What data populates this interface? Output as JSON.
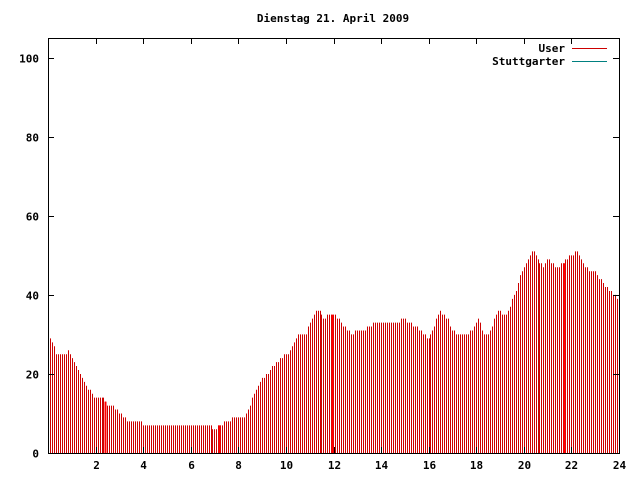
{
  "chart_data": {
    "type": "bar",
    "title": "Dienstag 21. April 2009",
    "xlabel": "",
    "ylabel": "",
    "xlim": [
      0,
      24
    ],
    "ylim": [
      0,
      105
    ],
    "x_ticks": [
      2,
      4,
      6,
      8,
      10,
      12,
      14,
      16,
      18,
      20,
      22,
      24
    ],
    "x_tick_labels": [
      "2",
      "4",
      "6",
      "8",
      "10",
      "12",
      "14",
      "16",
      "18",
      "20",
      "22",
      "24"
    ],
    "y_ticks": [
      0,
      20,
      40,
      60,
      80,
      100
    ],
    "y_tick_labels": [
      "0",
      "20",
      "40",
      "60",
      "80",
      "100"
    ],
    "grid": false,
    "legend_position": "top-right",
    "series": [
      {
        "name": "User",
        "color": "#cc0000",
        "anchors": [
          [
            0.0,
            29
          ],
          [
            0.17,
            28
          ],
          [
            0.33,
            25
          ],
          [
            0.6,
            25
          ],
          [
            0.75,
            25
          ],
          [
            0.85,
            26
          ],
          [
            1.0,
            24
          ],
          [
            1.2,
            22
          ],
          [
            1.4,
            19
          ],
          [
            1.6,
            17
          ],
          [
            1.8,
            15
          ],
          [
            2.0,
            14
          ],
          [
            2.3,
            14
          ],
          [
            2.5,
            12
          ],
          [
            2.7,
            12
          ],
          [
            2.85,
            11
          ],
          [
            3.0,
            10
          ],
          [
            3.2,
            9
          ],
          [
            3.4,
            8
          ],
          [
            3.8,
            8
          ],
          [
            4.1,
            7
          ],
          [
            4.5,
            7
          ],
          [
            5.0,
            7
          ],
          [
            6.0,
            7
          ],
          [
            6.8,
            7
          ],
          [
            7.0,
            6
          ],
          [
            7.2,
            7
          ],
          [
            7.6,
            8
          ],
          [
            7.8,
            9
          ],
          [
            8.2,
            9
          ],
          [
            8.4,
            11
          ],
          [
            8.6,
            14
          ],
          [
            8.8,
            17
          ],
          [
            9.0,
            19
          ],
          [
            9.2,
            20
          ],
          [
            9.4,
            22
          ],
          [
            9.6,
            23
          ],
          [
            9.8,
            24
          ],
          [
            10.0,
            25
          ],
          [
            10.2,
            26
          ],
          [
            10.4,
            29
          ],
          [
            10.5,
            30
          ],
          [
            10.8,
            30
          ],
          [
            11.0,
            33
          ],
          [
            11.2,
            36
          ],
          [
            11.4,
            36
          ],
          [
            11.6,
            34
          ],
          [
            11.8,
            35
          ],
          [
            12.0,
            35
          ],
          [
            12.2,
            34
          ],
          [
            12.4,
            32
          ],
          [
            12.6,
            31
          ],
          [
            12.8,
            30
          ],
          [
            13.0,
            31
          ],
          [
            13.3,
            31
          ],
          [
            13.5,
            32
          ],
          [
            13.8,
            33
          ],
          [
            14.0,
            33
          ],
          [
            14.3,
            33
          ],
          [
            14.6,
            33
          ],
          [
            14.9,
            34
          ],
          [
            15.1,
            33
          ],
          [
            15.4,
            32
          ],
          [
            15.6,
            31
          ],
          [
            15.8,
            30
          ],
          [
            16.0,
            29
          ],
          [
            16.2,
            31
          ],
          [
            16.3,
            34
          ],
          [
            16.45,
            36
          ],
          [
            16.6,
            35
          ],
          [
            16.8,
            34
          ],
          [
            17.0,
            31
          ],
          [
            17.2,
            30
          ],
          [
            17.6,
            30
          ],
          [
            17.8,
            31
          ],
          [
            18.0,
            33
          ],
          [
            18.1,
            34
          ],
          [
            18.3,
            30
          ],
          [
            18.5,
            30
          ],
          [
            18.7,
            33
          ],
          [
            18.9,
            36
          ],
          [
            19.1,
            35
          ],
          [
            19.3,
            35
          ],
          [
            19.5,
            39
          ],
          [
            19.7,
            42
          ],
          [
            19.9,
            46
          ],
          [
            20.0,
            47
          ],
          [
            20.2,
            50
          ],
          [
            20.4,
            51
          ],
          [
            20.6,
            49
          ],
          [
            20.8,
            47
          ],
          [
            21.0,
            49
          ],
          [
            21.2,
            48
          ],
          [
            21.4,
            47
          ],
          [
            21.6,
            48
          ],
          [
            21.8,
            49
          ],
          [
            22.0,
            50
          ],
          [
            22.2,
            51
          ],
          [
            22.4,
            49
          ],
          [
            22.6,
            47
          ],
          [
            22.8,
            46
          ],
          [
            23.0,
            46
          ],
          [
            23.2,
            44
          ],
          [
            23.4,
            42
          ],
          [
            23.6,
            41
          ],
          [
            23.8,
            40
          ],
          [
            24.0,
            39
          ]
        ],
        "highlight_x": [
          2.4,
          7.2,
          11.95,
          21.7
        ]
      },
      {
        "name": "Stuttgarter",
        "color": "#008080",
        "anchors": []
      }
    ]
  }
}
